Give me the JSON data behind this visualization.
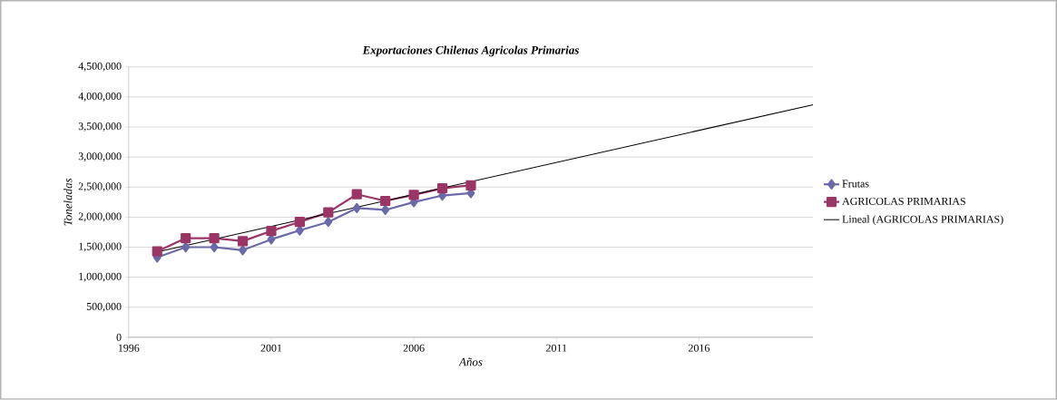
{
  "chart_data": {
    "type": "line",
    "title": "Exportaciones Chilenas Agricolas Primarias",
    "xlabel": "Años",
    "ylabel": "Toneladas",
    "x": [
      1997,
      1998,
      1999,
      2000,
      2001,
      2002,
      2003,
      2004,
      2005,
      2006,
      2007,
      2008
    ],
    "series": [
      {
        "name": "Frutas",
        "color": "#6a6aa8",
        "marker": "diamond",
        "values": [
          1330000,
          1500000,
          1500000,
          1450000,
          1630000,
          1780000,
          1920000,
          2150000,
          2120000,
          2250000,
          2360000,
          2400000
        ]
      },
      {
        "name": "AGRICOLAS PRIMARIAS",
        "color": "#9b3566",
        "marker": "square",
        "values": [
          1430000,
          1650000,
          1650000,
          1600000,
          1770000,
          1920000,
          2080000,
          2380000,
          2270000,
          2370000,
          2480000,
          2530000
        ]
      },
      {
        "name": "Lineal (AGRICOLAS PRIMARIAS)",
        "color": "#000000",
        "marker": "none",
        "x": [
          1997,
          2020
        ],
        "values": [
          1420000,
          3870000
        ]
      }
    ],
    "xlim": [
      1996,
      2020
    ],
    "xticks": [
      1996,
      2001,
      2006,
      2011,
      2016
    ],
    "ylim": [
      0,
      4500000
    ],
    "yticks": [
      {
        "value": 0,
        "label": "0"
      },
      {
        "value": 500000,
        "label": "500,000"
      },
      {
        "value": 1000000,
        "label": "1,000,000"
      },
      {
        "value": 1500000,
        "label": "1,500,000"
      },
      {
        "value": 2000000,
        "label": "2,000,000"
      },
      {
        "value": 2500000,
        "label": "2,500,000"
      },
      {
        "value": 3000000,
        "label": "3,000,000"
      },
      {
        "value": 3500000,
        "label": "3,500,000"
      },
      {
        "value": 4000000,
        "label": "4,000,000"
      },
      {
        "value": 4500000,
        "label": "4,500,000"
      }
    ],
    "grid": "y",
    "legend": "right"
  }
}
